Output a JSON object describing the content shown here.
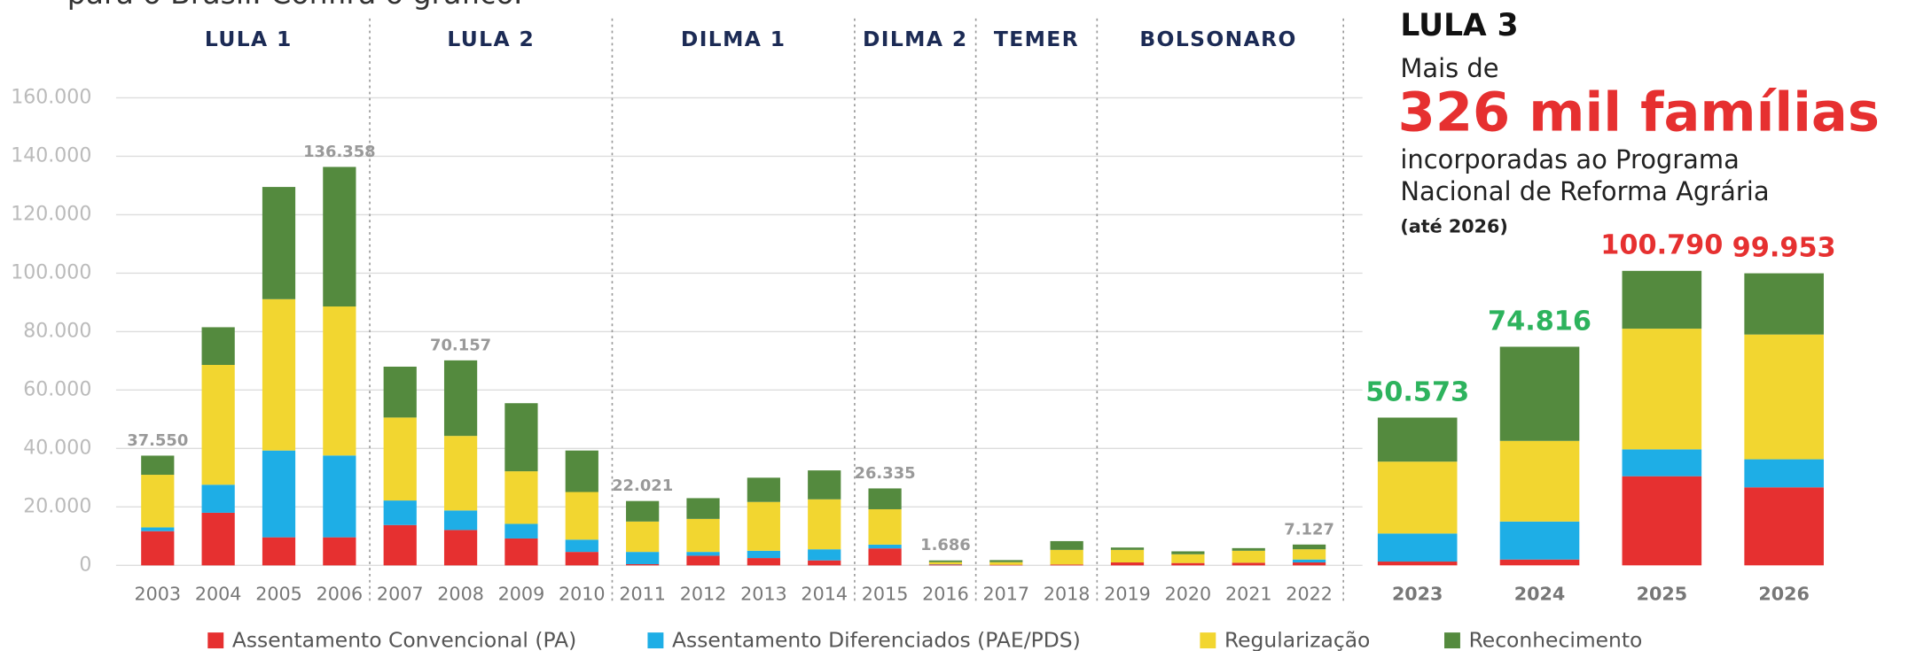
{
  "chart_data": {
    "type": "stacked_bar",
    "intro": "para o Brasil. Confira o gráfico.",
    "categories": [
      "2003",
      "2004",
      "2005",
      "2006",
      "2007",
      "2008",
      "2009",
      "2010",
      "2011",
      "2012",
      "2013",
      "2014",
      "2015",
      "2016",
      "2017",
      "2018",
      "2019",
      "2020",
      "2021",
      "2022",
      "2023",
      "2024",
      "2025",
      "2026"
    ],
    "series": [
      {
        "name": "Assentamento Convencional (PA)",
        "color": "#e63030",
        "values": [
          11700,
          18000,
          9600,
          9600,
          13800,
          12100,
          9200,
          4600,
          400,
          3300,
          2500,
          1700,
          5800,
          300,
          200,
          300,
          1000,
          800,
          900,
          1000,
          1300,
          2000,
          30500,
          26700
        ]
      },
      {
        "name": "Assentamento Diferenciados (PAE/PDS)",
        "color": "#1eaee6",
        "values": [
          1300,
          9600,
          29700,
          28000,
          8400,
          6700,
          5000,
          4200,
          4200,
          1300,
          2500,
          3800,
          1300,
          100,
          0,
          0,
          0,
          0,
          0,
          1000,
          9600,
          13000,
          9200,
          9600
        ]
      },
      {
        "name": "Regularização",
        "color": "#f2d630",
        "values": [
          18000,
          41000,
          51800,
          51000,
          28400,
          25500,
          18000,
          16300,
          10400,
          11300,
          16700,
          17100,
          12100,
          700,
          900,
          5000,
          4300,
          3000,
          4100,
          3500,
          24600,
          27600,
          41300,
          42700
        ]
      },
      {
        "name": "Reconhecimento",
        "color": "#548a3e",
        "values": [
          6550,
          12900,
          38400,
          47758,
          17400,
          25857,
          23300,
          14200,
          7021,
          7100,
          8300,
          9900,
          7135,
          586,
          700,
          3000,
          800,
          1000,
          900,
          1627,
          15073,
          32216,
          19790,
          20953
        ]
      }
    ],
    "ylim": [
      0,
      160000
    ],
    "yticks": [
      0,
      {
        "value": 20000,
        "label": "20.000"
      },
      {
        "value": 40000,
        "label": "40.000"
      },
      {
        "value": 60000,
        "label": "60.000"
      },
      {
        "value": 80000,
        "label": "80.000"
      },
      {
        "value": 100000,
        "label": "100.000"
      },
      {
        "value": 120000,
        "label": "120.000"
      },
      {
        "value": 140000,
        "label": "140.000"
      },
      {
        "value": 160000,
        "label": "160.000"
      }
    ],
    "grid": true,
    "periods": [
      {
        "label": "LULA 1",
        "start": 0,
        "end": 3
      },
      {
        "label": "LULA 2",
        "start": 4,
        "end": 7
      },
      {
        "label": "DILMA 1",
        "start": 8,
        "end": 11
      },
      {
        "label": "DILMA 2",
        "start": 12,
        "end": 13
      },
      {
        "label": "TEMER",
        "start": 14,
        "end": 15
      },
      {
        "label": "BOLSONARO",
        "start": 16,
        "end": 19
      }
    ],
    "total_labels": [
      {
        "index": 0,
        "label": "37.550",
        "color": "#999999"
      },
      {
        "index": 3,
        "label": "136.358",
        "color": "#999999"
      },
      {
        "index": 5,
        "label": "70.157",
        "color": "#999999"
      },
      {
        "index": 8,
        "label": "22.021",
        "color": "#999999"
      },
      {
        "index": 12,
        "label": "26.335",
        "color": "#999999"
      },
      {
        "index": 13,
        "label": "1.686",
        "color": "#999999"
      },
      {
        "index": 19,
        "label": "7.127",
        "color": "#999999"
      },
      {
        "index": 20,
        "label": "50.573",
        "color": "#2db35d"
      },
      {
        "index": 21,
        "label": "74.816",
        "color": "#2db35d"
      },
      {
        "index": 22,
        "label": "100.790",
        "color": "#e63030"
      },
      {
        "index": 23,
        "label": "99.953",
        "color": "#e63030"
      }
    ],
    "callout": {
      "title": "LULA 3",
      "line1": "Mais de",
      "highlight": "326 mil famílias",
      "line2": "incorporadas ao Programa",
      "line3": "Nacional de Reforma Agrária",
      "note": "(até 2026)"
    }
  }
}
